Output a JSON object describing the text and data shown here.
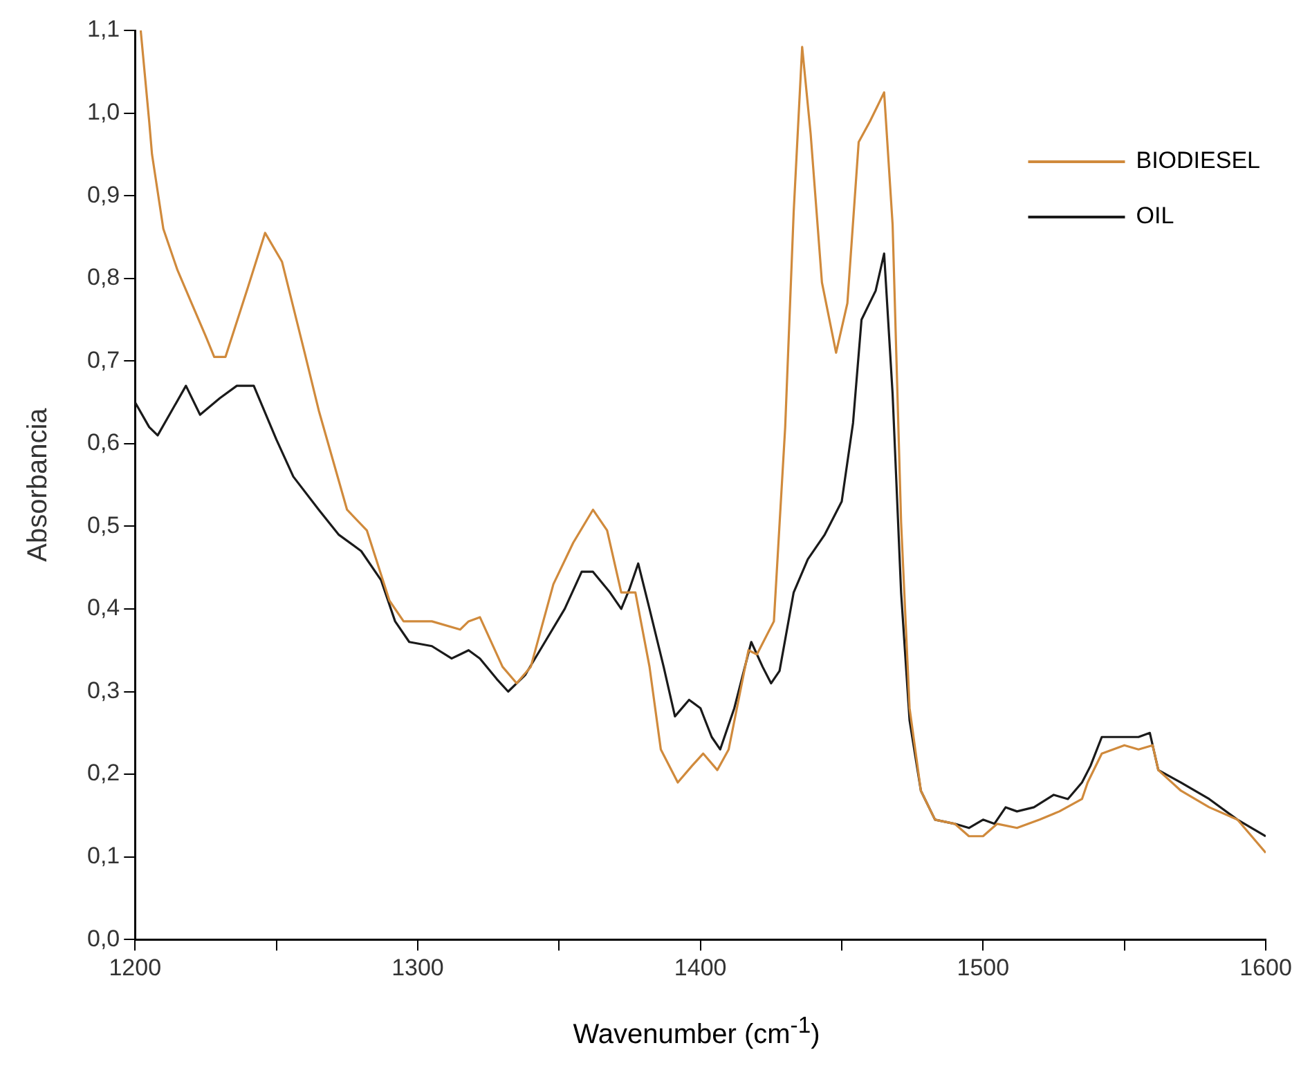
{
  "chart_data": {
    "type": "line",
    "xlabel": "Wavenumber (cm$^{-1}$)",
    "ylabel": "Absorbancia",
    "xlim": [
      1200,
      1600
    ],
    "ylim": [
      0,
      1.1
    ],
    "xticks": [
      1200,
      {
        "value": 1250,
        "label": null
      },
      1300,
      {
        "value": 1350,
        "label": null
      },
      1400,
      {
        "value": 1450,
        "label": null
      },
      1500,
      {
        "value": 1550,
        "label": null
      },
      1600
    ],
    "yticks": [
      {
        "value": 0,
        "label": "0,0"
      },
      {
        "value": 0.1,
        "label": "0,1"
      },
      {
        "value": 0.2,
        "label": "0,2"
      },
      {
        "value": 0.3,
        "label": "0,3"
      },
      {
        "value": 0.4,
        "label": "0,4"
      },
      {
        "value": 0.5,
        "label": "0,5"
      },
      {
        "value": 0.6,
        "label": "0,6"
      },
      {
        "value": 0.7,
        "label": "0,7"
      },
      {
        "value": 0.8,
        "label": "0,8"
      },
      {
        "value": 0.9,
        "label": "0,9"
      },
      {
        "value": 1.0,
        "label": "1,0"
      },
      {
        "value": 1.1,
        "label": "1,1"
      }
    ],
    "grid": false,
    "legend": "top right",
    "marker": "none",
    "line_style": "solid",
    "series": [
      {
        "name": "BIODIESEL",
        "color": "#d08a3c",
        "x": [
          1202,
          1205,
          1206,
          1210,
          1215,
          1220,
          1225,
          1228,
          1232,
          1240,
          1246,
          1252,
          1260,
          1265,
          1275,
          1282,
          1290,
          1295,
          1305,
          1315,
          1318,
          1322,
          1330,
          1335,
          1340,
          1348,
          1355,
          1362,
          1367,
          1372,
          1377,
          1382,
          1386,
          1392,
          1397,
          1401,
          1406,
          1410,
          1417,
          1420,
          1426,
          1430,
          1433,
          1436,
          1439,
          1443,
          1448,
          1452,
          1456,
          1460,
          1465,
          1468,
          1471,
          1474,
          1478,
          1483,
          1490,
          1495,
          1500,
          1505,
          1512,
          1520,
          1527,
          1535,
          1537,
          1542,
          1550,
          1555,
          1560,
          1562,
          1570,
          1580,
          1590,
          1600
        ],
        "values": [
          1.1,
          0.99,
          0.95,
          0.86,
          0.81,
          0.77,
          0.73,
          0.705,
          0.705,
          0.79,
          0.855,
          0.82,
          0.71,
          0.64,
          0.52,
          0.495,
          0.41,
          0.385,
          0.385,
          0.375,
          0.385,
          0.39,
          0.33,
          0.31,
          0.33,
          0.43,
          0.48,
          0.52,
          0.495,
          0.42,
          0.42,
          0.33,
          0.23,
          0.19,
          0.21,
          0.225,
          0.205,
          0.23,
          0.35,
          0.345,
          0.385,
          0.62,
          0.88,
          1.08,
          0.975,
          0.795,
          0.71,
          0.77,
          0.965,
          0.99,
          1.025,
          0.865,
          0.505,
          0.28,
          0.18,
          0.145,
          0.14,
          0.125,
          0.125,
          0.14,
          0.135,
          0.145,
          0.155,
          0.17,
          0.19,
          0.225,
          0.235,
          0.23,
          0.235,
          0.205,
          0.18,
          0.16,
          0.145,
          0.105
        ]
      },
      {
        "name": "OIL",
        "color": "#1a1a1a",
        "x": [
          1200,
          1205,
          1208,
          1213,
          1218,
          1223,
          1230,
          1236,
          1242,
          1250,
          1256,
          1265,
          1272,
          1280,
          1287,
          1292,
          1297,
          1305,
          1312,
          1315,
          1318,
          1322,
          1328,
          1332,
          1338,
          1345,
          1352,
          1358,
          1362,
          1368,
          1372,
          1375,
          1378,
          1382,
          1387,
          1391,
          1396,
          1400,
          1404,
          1407,
          1412,
          1418,
          1422,
          1425,
          1428,
          1433,
          1438,
          1444,
          1450,
          1454,
          1457,
          1462,
          1465,
          1468,
          1471,
          1474,
          1478,
          1483,
          1490,
          1495,
          1500,
          1504,
          1508,
          1512,
          1518,
          1525,
          1530,
          1535,
          1538,
          1542,
          1550,
          1555,
          1559,
          1562,
          1570,
          1580,
          1590,
          1600
        ],
        "values": [
          0.65,
          0.62,
          0.61,
          0.64,
          0.67,
          0.635,
          0.655,
          0.67,
          0.67,
          0.605,
          0.56,
          0.52,
          0.49,
          0.47,
          0.435,
          0.385,
          0.36,
          0.355,
          0.34,
          0.345,
          0.35,
          0.34,
          0.315,
          0.3,
          0.32,
          0.36,
          0.4,
          0.445,
          0.445,
          0.42,
          0.4,
          0.425,
          0.455,
          0.4,
          0.33,
          0.27,
          0.29,
          0.28,
          0.245,
          0.23,
          0.28,
          0.36,
          0.33,
          0.31,
          0.325,
          0.42,
          0.46,
          0.49,
          0.53,
          0.625,
          0.75,
          0.785,
          0.83,
          0.66,
          0.42,
          0.265,
          0.18,
          0.145,
          0.14,
          0.135,
          0.145,
          0.14,
          0.16,
          0.155,
          0.16,
          0.175,
          0.17,
          0.19,
          0.21,
          0.245,
          0.245,
          0.245,
          0.25,
          0.205,
          0.19,
          0.17,
          0.145,
          0.125
        ]
      }
    ]
  }
}
